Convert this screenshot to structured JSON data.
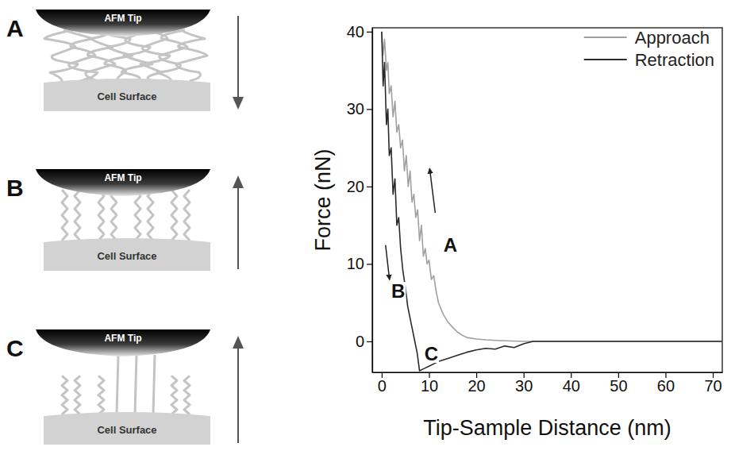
{
  "panels": [
    {
      "letter": "A",
      "tip_label": "AFM Tip",
      "surface_label": "Cell Surface"
    },
    {
      "letter": "B",
      "tip_label": "AFM Tip",
      "surface_label": "Cell Surface"
    },
    {
      "letter": "C",
      "tip_label": "AFM Tip",
      "surface_label": "Cell Surface"
    }
  ],
  "chart_data": {
    "type": "line",
    "x_label": "Tip-Sample Distance (nm)",
    "y_label": "Force (nN)",
    "xlim": [
      -2,
      72
    ],
    "ylim": [
      -4,
      40.5
    ],
    "xticks": [
      0,
      10,
      20,
      30,
      40,
      50,
      60,
      70
    ],
    "yticks": [
      0,
      10,
      20,
      30,
      40
    ],
    "legend": "top-right",
    "grid": false,
    "series": [
      {
        "name": "Approach",
        "color": "#a0a0a0",
        "x": [
          0,
          0.3,
          0.6,
          1,
          1.3,
          1.6,
          2,
          2.4,
          2.8,
          3.2,
          3.6,
          4,
          4.4,
          4.8,
          5.2,
          5.6,
          6,
          6.4,
          6.8,
          7.2,
          7.6,
          8,
          8.4,
          8.8,
          9.2,
          9.6,
          10,
          10.5,
          11,
          11.5,
          12,
          13,
          14,
          15,
          16,
          17,
          18,
          20,
          22,
          25,
          30,
          35,
          40,
          50,
          60,
          70,
          72
        ],
        "values": [
          40,
          37,
          39,
          35,
          36,
          32,
          33,
          29,
          31,
          27,
          28,
          25,
          26,
          22,
          24,
          20,
          22,
          18,
          19,
          16,
          17,
          13,
          15,
          11,
          12,
          10,
          10.5,
          8,
          8.5,
          6.5,
          5,
          3.5,
          2.5,
          1.8,
          1.2,
          0.8,
          0.5,
          0.3,
          0.2,
          0.1,
          0,
          0,
          0,
          0,
          0,
          0,
          0
        ]
      },
      {
        "name": "Retraction",
        "color": "#2a2a2a",
        "x": [
          0,
          0.3,
          0.6,
          1,
          1.3,
          1.6,
          2,
          2.4,
          2.8,
          3.2,
          3.6,
          4,
          4.5,
          5,
          5.5,
          6,
          6.5,
          7,
          7.5,
          8,
          9,
          10,
          12,
          14,
          16,
          18,
          20,
          22,
          24,
          26,
          28,
          30,
          32,
          40,
          50,
          60,
          70,
          72
        ],
        "values": [
          40,
          33,
          36,
          28,
          30,
          24,
          25,
          19,
          21,
          15,
          16,
          12,
          9,
          7,
          4.5,
          3,
          1.5,
          0,
          -1.5,
          -3.8,
          -3.5,
          -3.2,
          -2.6,
          -2.2,
          -1.8,
          -1.4,
          -1.1,
          -0.9,
          -1,
          -0.6,
          -0.8,
          -0.3,
          0,
          0,
          0,
          0,
          0,
          0
        ]
      }
    ],
    "annotations": [
      {
        "text": "A",
        "x": 14.5,
        "y": 12.5
      },
      {
        "text": "B",
        "x": 3.5,
        "y": 6.5
      },
      {
        "text": "C",
        "x": 10.5,
        "y": -1.6
      }
    ]
  }
}
